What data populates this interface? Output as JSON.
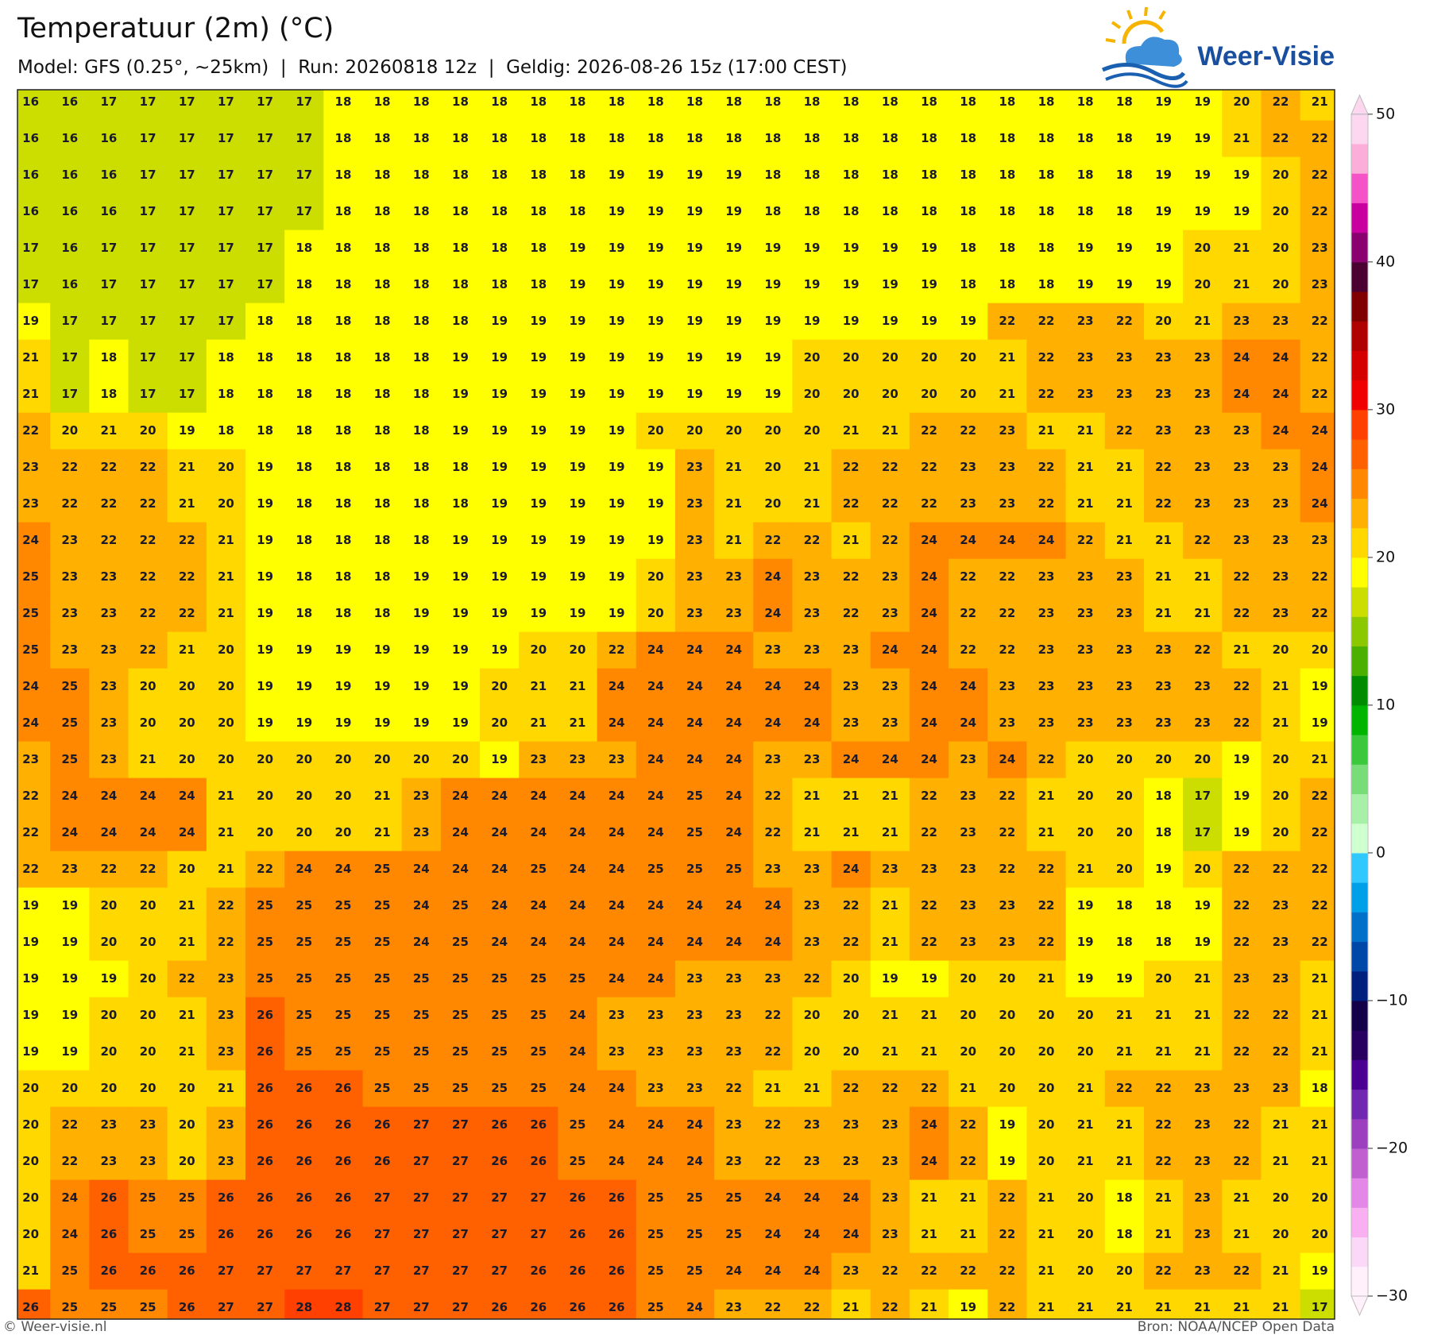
{
  "header": {
    "title": "Temperatuur (2m) (°C)",
    "subtitle": "Model: GFS (0.25°, ~25km)  |  Run: 20260818 12z  |  Geldig: 2026-08-26 15z (17:00 CEST)"
  },
  "logo": {
    "text": "Weer-Visie"
  },
  "footer": {
    "copyright": "© Weer-visie.nl",
    "source": "Bron: NOAA/NCEP Open Data"
  },
  "colorbar": {
    "range": [
      -30,
      50
    ],
    "colors": [
      "#fff0fc",
      "#fcd8f8",
      "#f8b0f0",
      "#e488e8",
      "#c060d0",
      "#9c40c0",
      "#7028b0",
      "#4a0090",
      "#280060",
      "#140048",
      "#002080",
      "#0048a8",
      "#0070c8",
      "#00a0e8",
      "#30c8ff",
      "#d0ffd0",
      "#a8f0a8",
      "#78dc78",
      "#3cc83c",
      "#00b400",
      "#008c00",
      "#4cb000",
      "#8cc800",
      "#ccdd00",
      "#ffff00",
      "#ffd800",
      "#ffb000",
      "#ff8800",
      "#ff6000",
      "#ff4000",
      "#f00000",
      "#d40000",
      "#b00000",
      "#800000",
      "#4a0030",
      "#8a006e",
      "#c800a0",
      "#f552c8",
      "#fbaed8",
      "#fdd7ef"
    ],
    "ticks": [
      50,
      40,
      30,
      20,
      10,
      0,
      {
        "value": -10,
        "label": "−10"
      },
      {
        "value": -20,
        "label": "−20"
      },
      {
        "value": -30,
        "label": "−30"
      }
    ]
  },
  "grid": {
    "values": [
      [
        16,
        16,
        17,
        17,
        17,
        17,
        17,
        17,
        18,
        18,
        18,
        18,
        18,
        18,
        18,
        18,
        18,
        18,
        18,
        18,
        18,
        18,
        18,
        18,
        18,
        18,
        18,
        18,
        18,
        19,
        19,
        20,
        22,
        21
      ],
      [
        16,
        16,
        16,
        17,
        17,
        17,
        17,
        17,
        18,
        18,
        18,
        18,
        18,
        18,
        18,
        18,
        18,
        18,
        18,
        18,
        18,
        18,
        18,
        18,
        18,
        18,
        18,
        18,
        18,
        19,
        19,
        21,
        22,
        22
      ],
      [
        16,
        16,
        16,
        17,
        17,
        17,
        17,
        17,
        18,
        18,
        18,
        18,
        18,
        18,
        18,
        19,
        19,
        19,
        19,
        18,
        18,
        18,
        18,
        18,
        18,
        18,
        18,
        18,
        18,
        19,
        19,
        19,
        20,
        22
      ],
      [
        16,
        16,
        16,
        17,
        17,
        17,
        17,
        17,
        18,
        18,
        18,
        18,
        18,
        18,
        18,
        19,
        19,
        19,
        19,
        18,
        18,
        18,
        18,
        18,
        18,
        18,
        18,
        18,
        18,
        19,
        19,
        19,
        20,
        22
      ],
      [
        17,
        16,
        17,
        17,
        17,
        17,
        17,
        18,
        18,
        18,
        18,
        18,
        18,
        18,
        19,
        19,
        19,
        19,
        19,
        19,
        19,
        19,
        19,
        19,
        18,
        18,
        18,
        19,
        19,
        19,
        20,
        21,
        20,
        23
      ],
      [
        17,
        16,
        17,
        17,
        17,
        17,
        17,
        18,
        18,
        18,
        18,
        18,
        18,
        18,
        19,
        19,
        19,
        19,
        19,
        19,
        19,
        19,
        19,
        19,
        18,
        18,
        18,
        19,
        19,
        19,
        20,
        21,
        20,
        23
      ],
      [
        19,
        17,
        17,
        17,
        17,
        17,
        18,
        18,
        18,
        18,
        18,
        18,
        19,
        19,
        19,
        19,
        19,
        19,
        19,
        19,
        19,
        19,
        19,
        19,
        19,
        22,
        22,
        23,
        22,
        20,
        21,
        23,
        23,
        22
      ],
      [
        21,
        17,
        18,
        17,
        17,
        18,
        18,
        18,
        18,
        18,
        18,
        19,
        19,
        19,
        19,
        19,
        19,
        19,
        19,
        19,
        20,
        20,
        20,
        20,
        20,
        21,
        22,
        23,
        23,
        23,
        23,
        24,
        24,
        22
      ],
      [
        21,
        17,
        18,
        17,
        17,
        18,
        18,
        18,
        18,
        18,
        18,
        19,
        19,
        19,
        19,
        19,
        19,
        19,
        19,
        19,
        20,
        20,
        20,
        20,
        20,
        21,
        22,
        23,
        23,
        23,
        23,
        24,
        24,
        22
      ],
      [
        22,
        20,
        21,
        20,
        19,
        18,
        18,
        18,
        18,
        18,
        18,
        19,
        19,
        19,
        19,
        19,
        20,
        20,
        20,
        20,
        20,
        21,
        21,
        22,
        22,
        23,
        21,
        21,
        22,
        23,
        23,
        23,
        24,
        24
      ],
      [
        23,
        22,
        22,
        22,
        21,
        20,
        19,
        18,
        18,
        18,
        18,
        18,
        19,
        19,
        19,
        19,
        19,
        23,
        21,
        20,
        21,
        22,
        22,
        22,
        23,
        23,
        22,
        21,
        21,
        22,
        23,
        23,
        23,
        24
      ],
      [
        23,
        22,
        22,
        22,
        21,
        20,
        19,
        18,
        18,
        18,
        18,
        18,
        19,
        19,
        19,
        19,
        19,
        23,
        21,
        20,
        21,
        22,
        22,
        22,
        23,
        23,
        22,
        21,
        21,
        22,
        23,
        23,
        23,
        24
      ],
      [
        24,
        23,
        22,
        22,
        22,
        21,
        19,
        18,
        18,
        18,
        18,
        19,
        19,
        19,
        19,
        19,
        19,
        23,
        21,
        22,
        22,
        21,
        22,
        24,
        24,
        24,
        24,
        22,
        21,
        21,
        22,
        23,
        23,
        23
      ],
      [
        25,
        23,
        23,
        22,
        22,
        21,
        19,
        18,
        18,
        18,
        19,
        19,
        19,
        19,
        19,
        19,
        20,
        23,
        23,
        24,
        23,
        22,
        23,
        24,
        22,
        22,
        23,
        23,
        23,
        21,
        21,
        22,
        23,
        22
      ],
      [
        25,
        23,
        23,
        22,
        22,
        21,
        19,
        18,
        18,
        18,
        19,
        19,
        19,
        19,
        19,
        19,
        20,
        23,
        23,
        24,
        23,
        22,
        23,
        24,
        22,
        22,
        23,
        23,
        23,
        21,
        21,
        22,
        23,
        22
      ],
      [
        25,
        23,
        23,
        22,
        21,
        20,
        19,
        19,
        19,
        19,
        19,
        19,
        19,
        20,
        20,
        22,
        24,
        24,
        24,
        23,
        23,
        23,
        24,
        24,
        22,
        22,
        23,
        23,
        23,
        23,
        22,
        21,
        20,
        20
      ],
      [
        24,
        25,
        23,
        20,
        20,
        20,
        19,
        19,
        19,
        19,
        19,
        19,
        20,
        21,
        21,
        24,
        24,
        24,
        24,
        24,
        24,
        23,
        23,
        24,
        24,
        23,
        23,
        23,
        23,
        23,
        23,
        22,
        21,
        19
      ],
      [
        24,
        25,
        23,
        20,
        20,
        20,
        19,
        19,
        19,
        19,
        19,
        19,
        20,
        21,
        21,
        24,
        24,
        24,
        24,
        24,
        24,
        23,
        23,
        24,
        24,
        23,
        23,
        23,
        23,
        23,
        23,
        22,
        21,
        19
      ],
      [
        23,
        25,
        23,
        21,
        20,
        20,
        20,
        20,
        20,
        20,
        20,
        20,
        19,
        23,
        23,
        23,
        24,
        24,
        24,
        23,
        23,
        24,
        24,
        24,
        23,
        24,
        22,
        20,
        20,
        20,
        20,
        19,
        20,
        21
      ],
      [
        22,
        24,
        24,
        24,
        24,
        21,
        20,
        20,
        20,
        21,
        23,
        24,
        24,
        24,
        24,
        24,
        24,
        25,
        24,
        22,
        21,
        21,
        21,
        22,
        23,
        22,
        21,
        20,
        20,
        18,
        17,
        19,
        20,
        22
      ],
      [
        22,
        24,
        24,
        24,
        24,
        21,
        20,
        20,
        20,
        21,
        23,
        24,
        24,
        24,
        24,
        24,
        24,
        25,
        24,
        22,
        21,
        21,
        21,
        22,
        23,
        22,
        21,
        20,
        20,
        18,
        17,
        19,
        20,
        22
      ],
      [
        22,
        23,
        22,
        22,
        20,
        21,
        22,
        24,
        24,
        25,
        24,
        24,
        24,
        25,
        24,
        24,
        25,
        25,
        25,
        23,
        23,
        24,
        23,
        23,
        23,
        22,
        22,
        21,
        20,
        19,
        20,
        22,
        22,
        22
      ],
      [
        19,
        19,
        20,
        20,
        21,
        22,
        25,
        25,
        25,
        25,
        24,
        25,
        24,
        24,
        24,
        24,
        24,
        24,
        24,
        24,
        23,
        22,
        21,
        22,
        23,
        23,
        22,
        19,
        18,
        18,
        19,
        22,
        23,
        22
      ],
      [
        19,
        19,
        20,
        20,
        21,
        22,
        25,
        25,
        25,
        25,
        24,
        25,
        24,
        24,
        24,
        24,
        24,
        24,
        24,
        24,
        23,
        22,
        21,
        22,
        23,
        23,
        22,
        19,
        18,
        18,
        19,
        22,
        23,
        22
      ],
      [
        19,
        19,
        19,
        20,
        22,
        23,
        25,
        25,
        25,
        25,
        25,
        25,
        25,
        25,
        25,
        24,
        24,
        23,
        23,
        23,
        22,
        20,
        19,
        19,
        20,
        20,
        21,
        19,
        19,
        20,
        21,
        23,
        23,
        21
      ],
      [
        19,
        19,
        20,
        20,
        21,
        23,
        26,
        25,
        25,
        25,
        25,
        25,
        25,
        25,
        24,
        23,
        23,
        23,
        23,
        22,
        20,
        20,
        21,
        21,
        20,
        20,
        20,
        20,
        21,
        21,
        21,
        22,
        22,
        21
      ],
      [
        19,
        19,
        20,
        20,
        21,
        23,
        26,
        25,
        25,
        25,
        25,
        25,
        25,
        25,
        24,
        23,
        23,
        23,
        23,
        22,
        20,
        20,
        21,
        21,
        20,
        20,
        20,
        20,
        21,
        21,
        21,
        22,
        22,
        21
      ],
      [
        20,
        20,
        20,
        20,
        20,
        21,
        26,
        26,
        26,
        25,
        25,
        25,
        25,
        25,
        24,
        24,
        23,
        23,
        22,
        21,
        21,
        22,
        22,
        22,
        21,
        20,
        20,
        21,
        22,
        22,
        23,
        23,
        23,
        18
      ],
      [
        20,
        22,
        23,
        23,
        20,
        23,
        26,
        26,
        26,
        26,
        27,
        27,
        26,
        26,
        25,
        24,
        24,
        24,
        23,
        22,
        23,
        23,
        23,
        24,
        22,
        19,
        20,
        21,
        21,
        22,
        23,
        22,
        21,
        21
      ],
      [
        20,
        22,
        23,
        23,
        20,
        23,
        26,
        26,
        26,
        26,
        27,
        27,
        26,
        26,
        25,
        24,
        24,
        24,
        23,
        22,
        23,
        23,
        23,
        24,
        22,
        19,
        20,
        21,
        21,
        22,
        23,
        22,
        21,
        21
      ],
      [
        20,
        24,
        26,
        25,
        25,
        26,
        26,
        26,
        26,
        27,
        27,
        27,
        27,
        27,
        26,
        26,
        25,
        25,
        25,
        24,
        24,
        24,
        23,
        21,
        21,
        22,
        21,
        20,
        18,
        21,
        23,
        21,
        20,
        20
      ],
      [
        20,
        24,
        26,
        25,
        25,
        26,
        26,
        26,
        26,
        27,
        27,
        27,
        27,
        27,
        26,
        26,
        25,
        25,
        25,
        24,
        24,
        24,
        23,
        21,
        21,
        22,
        21,
        20,
        18,
        21,
        23,
        21,
        20,
        20
      ],
      [
        21,
        25,
        26,
        26,
        26,
        27,
        27,
        27,
        27,
        27,
        27,
        27,
        27,
        26,
        26,
        26,
        25,
        25,
        24,
        24,
        24,
        23,
        22,
        22,
        22,
        22,
        21,
        20,
        20,
        22,
        23,
        22,
        21,
        19
      ],
      [
        26,
        25,
        25,
        25,
        26,
        27,
        27,
        28,
        28,
        27,
        27,
        27,
        26,
        26,
        26,
        26,
        25,
        24,
        23,
        22,
        22,
        21,
        22,
        21,
        19,
        22,
        21,
        21,
        21,
        21,
        21,
        21,
        21,
        17
      ]
    ]
  }
}
